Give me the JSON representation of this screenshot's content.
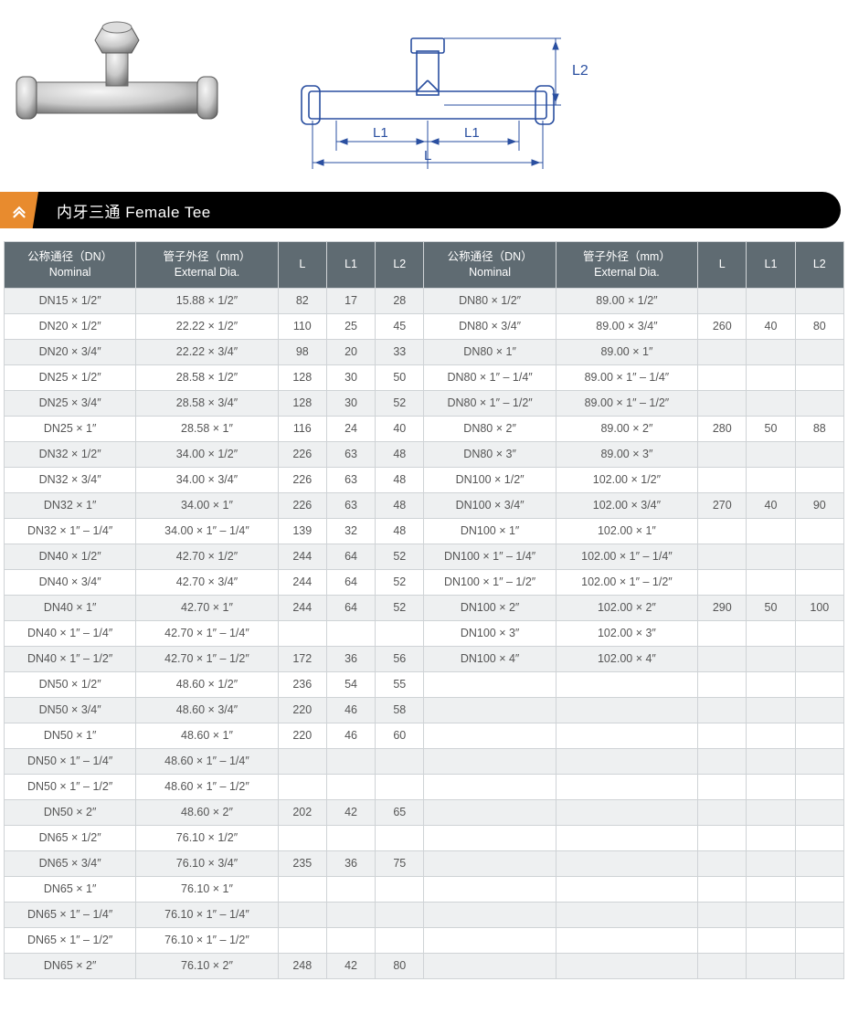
{
  "title": "内牙三通 Female Tee",
  "diagram_labels": {
    "L": "L",
    "L1": "L1",
    "L2": "L2"
  },
  "diagram_color": "#2a4fa0",
  "table": {
    "header_bg": "#5f6b72",
    "header_fg": "#ffffff",
    "row_odd_bg": "#eef0f1",
    "row_even_bg": "#ffffff",
    "border_color": "#cfd3d6",
    "columns": [
      {
        "key": "nominal",
        "label_cn": "公称通径（DN）",
        "label_en": "Nominal"
      },
      {
        "key": "external",
        "label_cn": "管子外径（mm）",
        "label_en": "External Dia."
      },
      {
        "key": "L",
        "label": "L"
      },
      {
        "key": "L1",
        "label": "L1"
      },
      {
        "key": "L2",
        "label": "L2"
      },
      {
        "key": "nominal2",
        "label_cn": "公称通径（DN）",
        "label_en": "Nominal"
      },
      {
        "key": "external2",
        "label_cn": "管子外径（mm）",
        "label_en": "External Dia."
      },
      {
        "key": "L_2",
        "label": "L"
      },
      {
        "key": "L1_2",
        "label": "L1"
      },
      {
        "key": "L2_2",
        "label": "L2"
      }
    ],
    "rows": [
      [
        "DN15 × 1/2″",
        "15.88 × 1/2″",
        "82",
        "17",
        "28",
        "DN80 × 1/2″",
        "89.00 × 1/2″",
        "",
        "",
        ""
      ],
      [
        "DN20 × 1/2″",
        "22.22 × 1/2″",
        "110",
        "25",
        "45",
        "DN80 × 3/4″",
        "89.00 × 3/4″",
        "260",
        "40",
        "80"
      ],
      [
        "DN20 × 3/4″",
        "22.22 × 3/4″",
        "98",
        "20",
        "33",
        "DN80 × 1″",
        "89.00 × 1″",
        "",
        "",
        ""
      ],
      [
        "DN25 × 1/2″",
        "28.58 × 1/2″",
        "128",
        "30",
        "50",
        "DN80 × 1″ – 1/4″",
        "89.00 × 1″ – 1/4″",
        "",
        "",
        ""
      ],
      [
        "DN25 × 3/4″",
        "28.58 × 3/4″",
        "128",
        "30",
        "52",
        "DN80 × 1″ – 1/2″",
        "89.00 × 1″ – 1/2″",
        "",
        "",
        ""
      ],
      [
        "DN25 × 1″",
        "28.58 × 1″",
        "116",
        "24",
        "40",
        "DN80 × 2″",
        "89.00 × 2″",
        "280",
        "50",
        "88"
      ],
      [
        "DN32 × 1/2″",
        "34.00 × 1/2″",
        "226",
        "63",
        "48",
        "DN80 × 3″",
        "89.00 × 3″",
        "",
        "",
        ""
      ],
      [
        "DN32 × 3/4″",
        "34.00 × 3/4″",
        "226",
        "63",
        "48",
        "DN100 × 1/2″",
        "102.00 × 1/2″",
        "",
        "",
        ""
      ],
      [
        "DN32 × 1″",
        "34.00 × 1″",
        "226",
        "63",
        "48",
        "DN100 × 3/4″",
        "102.00 × 3/4″",
        "270",
        "40",
        "90"
      ],
      [
        "DN32 × 1″ – 1/4″",
        "34.00 × 1″ – 1/4″",
        "139",
        "32",
        "48",
        "DN100 × 1″",
        "102.00 × 1″",
        "",
        "",
        ""
      ],
      [
        "DN40 × 1/2″",
        "42.70 × 1/2″",
        "244",
        "64",
        "52",
        "DN100 × 1″ – 1/4″",
        "102.00 × 1″ – 1/4″",
        "",
        "",
        ""
      ],
      [
        "DN40 × 3/4″",
        "42.70 × 3/4″",
        "244",
        "64",
        "52",
        "DN100 × 1″ – 1/2″",
        "102.00 × 1″ – 1/2″",
        "",
        "",
        ""
      ],
      [
        "DN40 × 1″",
        "42.70 × 1″",
        "244",
        "64",
        "52",
        "DN100 × 2″",
        "102.00 × 2″",
        "290",
        "50",
        "100"
      ],
      [
        "DN40 × 1″ – 1/4″",
        "42.70 × 1″ – 1/4″",
        "",
        "",
        "",
        "DN100 × 3″",
        "102.00 × 3″",
        "",
        "",
        ""
      ],
      [
        "DN40 × 1″ – 1/2″",
        "42.70 × 1″ – 1/2″",
        "172",
        "36",
        "56",
        "DN100 × 4″",
        "102.00 × 4″",
        "",
        "",
        ""
      ],
      [
        "DN50 × 1/2″",
        "48.60 × 1/2″",
        "236",
        "54",
        "55",
        "",
        "",
        "",
        "",
        ""
      ],
      [
        "DN50 × 3/4″",
        "48.60 × 3/4″",
        "220",
        "46",
        "58",
        "",
        "",
        "",
        "",
        ""
      ],
      [
        "DN50 × 1″",
        "48.60 × 1″",
        "220",
        "46",
        "60",
        "",
        "",
        "",
        "",
        ""
      ],
      [
        "DN50 × 1″ – 1/4″",
        "48.60 × 1″ – 1/4″",
        "",
        "",
        "",
        "",
        "",
        "",
        "",
        ""
      ],
      [
        "DN50 × 1″ – 1/2″",
        "48.60 × 1″ – 1/2″",
        "",
        "",
        "",
        "",
        "",
        "",
        "",
        ""
      ],
      [
        "DN50 × 2″",
        "48.60 × 2″",
        "202",
        "42",
        "65",
        "",
        "",
        "",
        "",
        ""
      ],
      [
        "DN65 × 1/2″",
        "76.10 × 1/2″",
        "",
        "",
        "",
        "",
        "",
        "",
        "",
        ""
      ],
      [
        "DN65 × 3/4″",
        "76.10 × 3/4″",
        "235",
        "36",
        "75",
        "",
        "",
        "",
        "",
        ""
      ],
      [
        "DN65 × 1″",
        "76.10 × 1″",
        "",
        "",
        "",
        "",
        "",
        "",
        "",
        ""
      ],
      [
        "DN65 × 1″ – 1/4″",
        "76.10 × 1″ – 1/4″",
        "",
        "",
        "",
        "",
        "",
        "",
        "",
        ""
      ],
      [
        "DN65 × 1″ – 1/2″",
        "76.10 × 1″ – 1/2″",
        "",
        "",
        "",
        "",
        "",
        "",
        "",
        ""
      ],
      [
        "DN65 × 2″",
        "76.10 × 2″",
        "248",
        "42",
        "80",
        "",
        "",
        "",
        "",
        ""
      ]
    ]
  }
}
